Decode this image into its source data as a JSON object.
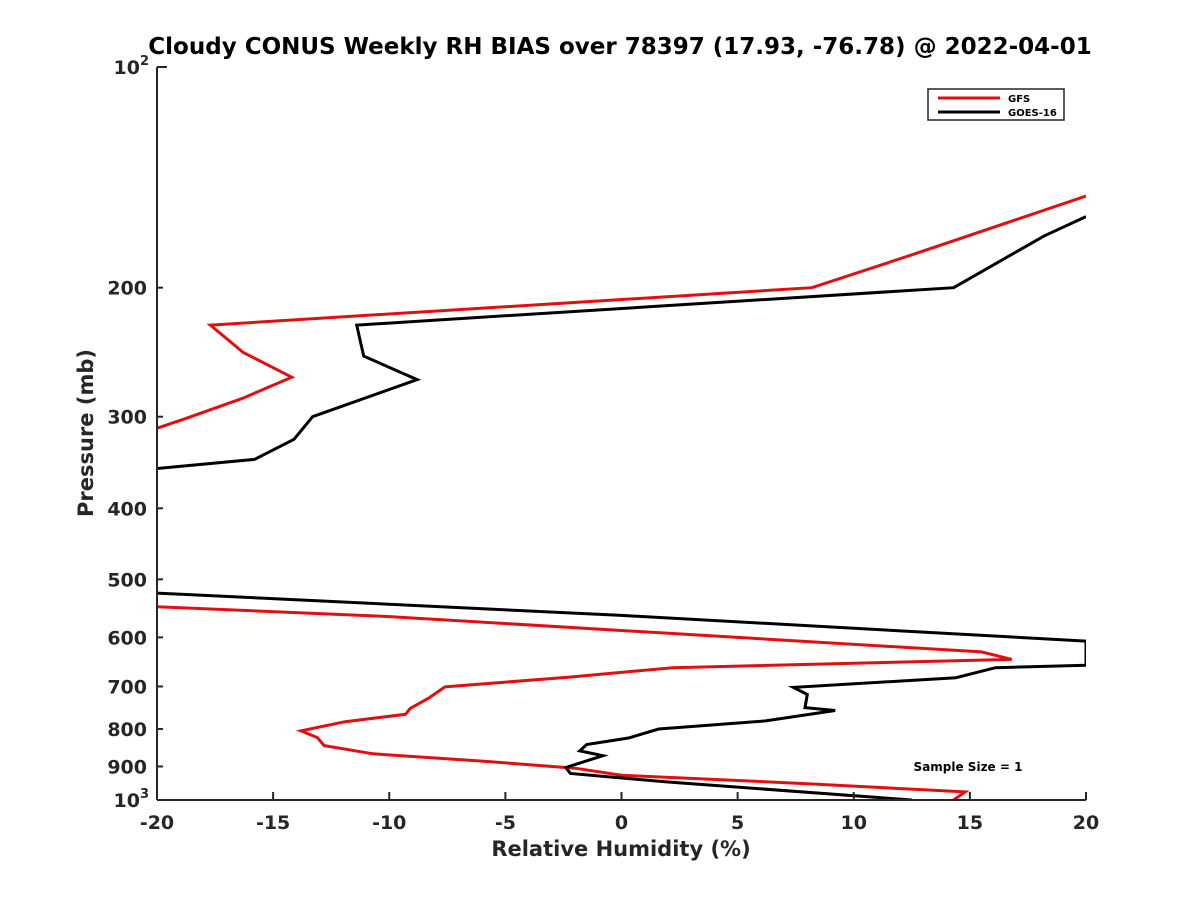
{
  "chart_data": {
    "type": "line",
    "title": "Cloudy CONUS Weekly RH BIAS over 78397 (17.93, -76.78) @ 2022-04-01",
    "xlabel": "Relative Humidity (%)",
    "ylabel": "Pressure (mb)",
    "xlim": [
      -20,
      20
    ],
    "ylim": [
      100,
      1000
    ],
    "yscale": "log",
    "y_reversed": true,
    "grid": false,
    "legend_position": "top-right",
    "xticks": [
      -20,
      -15,
      -10,
      -5,
      0,
      5,
      10,
      15,
      20
    ],
    "xtick_labels": [
      "-20",
      "-15",
      "-10",
      "-5",
      "0",
      "5",
      "10",
      "15",
      "20"
    ],
    "yticks_major": [
      {
        "value": 100,
        "base": "10",
        "exp": "2"
      },
      {
        "value": 1000,
        "base": "10",
        "exp": "3"
      }
    ],
    "yticks_minor": [
      {
        "value": 200,
        "label": "200"
      },
      {
        "value": 300,
        "label": "300"
      },
      {
        "value": 400,
        "label": "400"
      },
      {
        "value": 500,
        "label": "500"
      },
      {
        "value": 600,
        "label": "600"
      },
      {
        "value": 700,
        "label": "700"
      },
      {
        "value": 800,
        "label": "800"
      },
      {
        "value": 900,
        "label": "900"
      }
    ],
    "annotation": "Sample Size = 1",
    "series": [
      {
        "name": "GFS",
        "color": "#e01010",
        "segments": [
          [
            {
              "x": 20,
              "y": 150
            },
            {
              "x": 12.6,
              "y": 180
            },
            {
              "x": 8.2,
              "y": 200
            },
            {
              "x": -17.7,
              "y": 225
            },
            {
              "x": -16.3,
              "y": 245
            },
            {
              "x": -14.2,
              "y": 265
            },
            {
              "x": -16.3,
              "y": 283
            },
            {
              "x": -18.8,
              "y": 302
            },
            {
              "x": -20,
              "y": 311
            }
          ],
          [
            {
              "x": -20,
              "y": 545
            },
            {
              "x": -10,
              "y": 562
            },
            {
              "x": 5,
              "y": 600
            },
            {
              "x": 15.5,
              "y": 628
            },
            {
              "x": 16.8,
              "y": 643
            },
            {
              "x": 2.2,
              "y": 660
            },
            {
              "x": -2.3,
              "y": 680
            },
            {
              "x": -7.6,
              "y": 701
            },
            {
              "x": -8.3,
              "y": 726
            },
            {
              "x": -9.1,
              "y": 750
            },
            {
              "x": -9.3,
              "y": 764
            },
            {
              "x": -11.9,
              "y": 782
            },
            {
              "x": -13.8,
              "y": 805
            },
            {
              "x": -13.1,
              "y": 822
            },
            {
              "x": -12.8,
              "y": 843
            },
            {
              "x": -10.7,
              "y": 865
            },
            {
              "x": -6,
              "y": 885
            },
            {
              "x": -2,
              "y": 905
            },
            {
              "x": 0,
              "y": 925
            },
            {
              "x": 8,
              "y": 950
            },
            {
              "x": 14.8,
              "y": 975
            },
            {
              "x": 14.3,
              "y": 1000
            }
          ]
        ]
      },
      {
        "name": "GOES-16",
        "color": "#000000",
        "segments": [
          [
            {
              "x": 20,
              "y": 160
            },
            {
              "x": 18.2,
              "y": 170
            },
            {
              "x": 14.3,
              "y": 200
            },
            {
              "x": -11.4,
              "y": 225
            },
            {
              "x": -11.1,
              "y": 248
            },
            {
              "x": -8.8,
              "y": 267
            },
            {
              "x": -13.3,
              "y": 300
            },
            {
              "x": -14.1,
              "y": 322
            },
            {
              "x": -15.8,
              "y": 343
            },
            {
              "x": -20,
              "y": 353
            }
          ],
          [
            {
              "x": -20,
              "y": 522
            },
            {
              "x": 0,
              "y": 560
            },
            {
              "x": 20,
              "y": 607
            },
            {
              "x": 20,
              "y": 655
            },
            {
              "x": 16.1,
              "y": 660
            },
            {
              "x": 14.4,
              "y": 681
            },
            {
              "x": 7.4,
              "y": 702
            },
            {
              "x": 8,
              "y": 718
            },
            {
              "x": 7.9,
              "y": 748
            },
            {
              "x": 9.2,
              "y": 755
            },
            {
              "x": 6.2,
              "y": 780
            },
            {
              "x": 1.6,
              "y": 800
            },
            {
              "x": 0.3,
              "y": 823
            },
            {
              "x": -1.5,
              "y": 840
            },
            {
              "x": -1.8,
              "y": 857
            },
            {
              "x": -0.8,
              "y": 870
            },
            {
              "x": -2.4,
              "y": 903
            },
            {
              "x": -2.2,
              "y": 920
            },
            {
              "x": 2,
              "y": 945
            },
            {
              "x": 12.5,
              "y": 1000
            }
          ]
        ]
      }
    ]
  }
}
